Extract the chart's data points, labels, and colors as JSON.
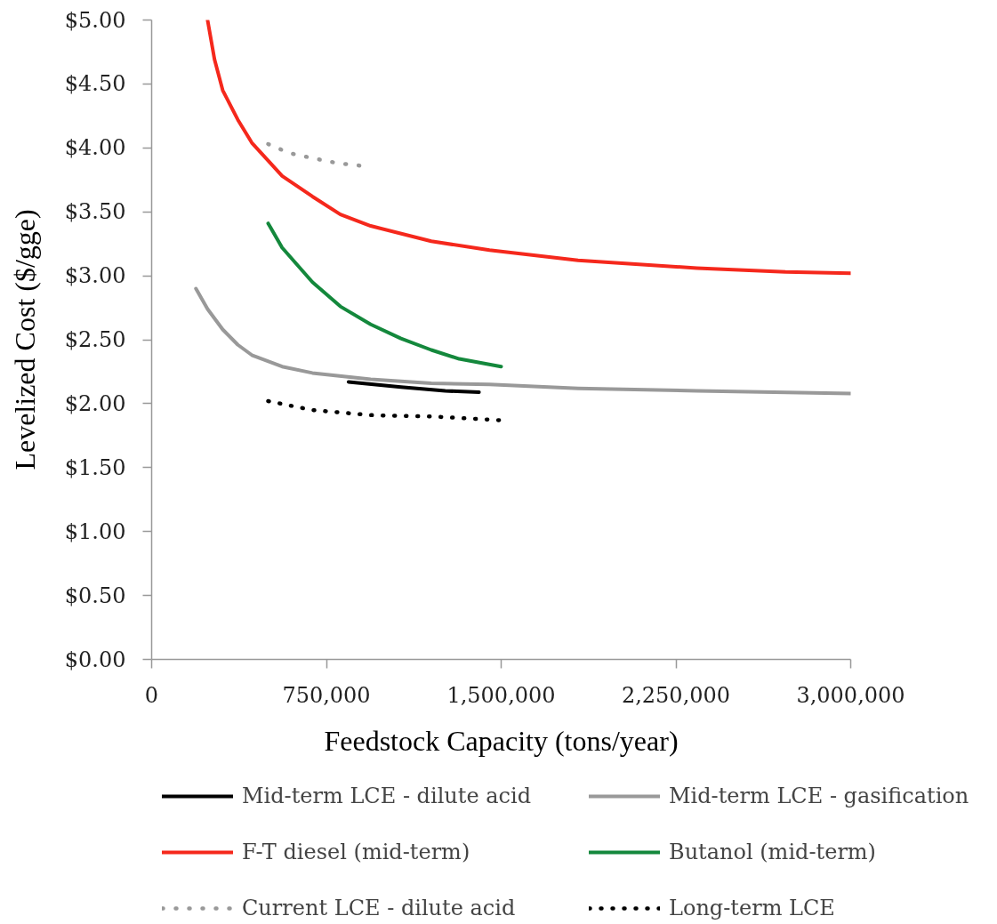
{
  "chart_data": {
    "type": "line",
    "xlabel": "Feedstock Capacity (tons/year)",
    "ylabel": "Levelized Cost ($/gge)",
    "xlim": [
      0,
      3000000
    ],
    "ylim": [
      0,
      5
    ],
    "xticks": [
      0,
      {
        "value": 750000,
        "label": "750,000"
      },
      {
        "value": 1500000,
        "label": "1,500,000"
      },
      {
        "value": 2250000,
        "label": "2,250,000"
      },
      {
        "value": 3000000,
        "label": "3,000,000"
      }
    ],
    "yticks": [
      {
        "value": 0,
        "label": "$0.00"
      },
      {
        "value": 0.5,
        "label": "$0.50"
      },
      {
        "value": 1,
        "label": "$1.00"
      },
      {
        "value": 1.5,
        "label": "$1.50"
      },
      {
        "value": 2,
        "label": "$2.00"
      },
      {
        "value": 2.5,
        "label": "$2.50"
      },
      {
        "value": 3,
        "label": "$3.00"
      },
      {
        "value": 3.5,
        "label": "$3.50"
      },
      {
        "value": 4,
        "label": "$4.00"
      },
      {
        "value": 4.5,
        "label": "$4.50"
      },
      {
        "value": 5,
        "label": "$5.00"
      }
    ],
    "grid": false,
    "legend": "bottom",
    "series": [
      {
        "name": "Mid-term LCE - dilute acid",
        "color": "#000000",
        "line_style": "solid",
        "x": [
          845000,
          1070000,
          1260000,
          1405000
        ],
        "values": [
          2.17,
          2.13,
          2.1,
          2.09
        ]
      },
      {
        "name": "Mid-term LCE - gasification",
        "color": "#999999",
        "line_style": "solid",
        "x": [
          190000,
          240000,
          305000,
          370000,
          430000,
          560000,
          690000,
          940000,
          1200000,
          1450000,
          1830000,
          2340000,
          3000000
        ],
        "values": [
          2.9,
          2.74,
          2.58,
          2.46,
          2.38,
          2.29,
          2.24,
          2.19,
          2.16,
          2.15,
          2.12,
          2.1,
          2.08
        ]
      },
      {
        "name": "F-T diesel (mid-term)",
        "color": "#f5281c",
        "line_style": "solid",
        "x": [
          240000,
          270000,
          305000,
          370000,
          430000,
          500000,
          560000,
          690000,
          810000,
          940000,
          1200000,
          1450000,
          1830000,
          2340000,
          2720000,
          3000000
        ],
        "values": [
          5.0,
          4.69,
          4.45,
          4.22,
          4.04,
          3.9,
          3.78,
          3.62,
          3.48,
          3.39,
          3.27,
          3.2,
          3.12,
          3.06,
          3.03,
          3.02
        ]
      },
      {
        "name": "Butanol (mid-term)",
        "color": "#14883c",
        "line_style": "solid",
        "x": [
          500000,
          560000,
          690000,
          810000,
          940000,
          1070000,
          1200000,
          1320000,
          1500000
        ],
        "values": [
          3.41,
          3.22,
          2.95,
          2.76,
          2.62,
          2.51,
          2.42,
          2.35,
          2.29
        ]
      },
      {
        "name": "Current LCE - dilute acid",
        "color": "#999999",
        "line_style": "dotted",
        "x": [
          500000,
          590000,
          690000,
          800000,
          900000
        ],
        "values": [
          4.03,
          3.96,
          3.92,
          3.88,
          3.86
        ]
      },
      {
        "name": "Long-term LCE",
        "color": "#000000",
        "line_style": "dotted",
        "x": [
          500000,
          690000,
          940000,
          1200000,
          1400000,
          1500000
        ],
        "values": [
          2.02,
          1.95,
          1.91,
          1.9,
          1.88,
          1.87
        ]
      }
    ]
  }
}
